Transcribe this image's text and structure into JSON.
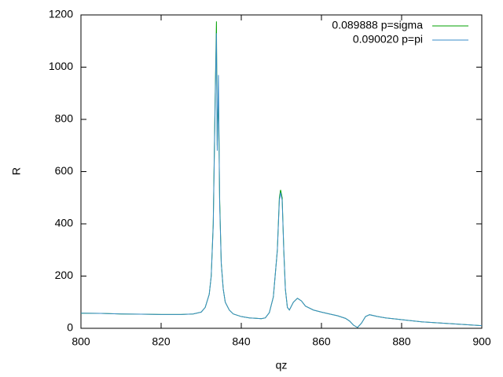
{
  "chart_data": {
    "type": "line",
    "xlabel": "qz",
    "ylabel": "R",
    "x": [
      800,
      805,
      810,
      815,
      820,
      825,
      828,
      830,
      831,
      832,
      832.5,
      833,
      833.5,
      833.8,
      834,
      834.3,
      834.6,
      835,
      835.5,
      836,
      837,
      838,
      840,
      842,
      844,
      845,
      846,
      847,
      848,
      849,
      849.5,
      849.8,
      850.2,
      850.6,
      851,
      851.5,
      852,
      853,
      854,
      855,
      856,
      858,
      860,
      862,
      864,
      866,
      867,
      868,
      869,
      870,
      871,
      872,
      874,
      876,
      880,
      885,
      890,
      895,
      900
    ],
    "series": [
      {
        "name": "0.089888 p=sigma",
        "color": "#00a000",
        "values": [
          58,
          57,
          55,
          54,
          53,
          53,
          55,
          62,
          80,
          130,
          200,
          400,
          900,
          1175,
          700,
          900,
          500,
          250,
          150,
          100,
          70,
          55,
          45,
          40,
          38,
          37,
          40,
          60,
          120,
          300,
          500,
          530,
          500,
          300,
          150,
          80,
          70,
          100,
          115,
          105,
          85,
          70,
          62,
          55,
          48,
          38,
          28,
          12,
          3,
          20,
          45,
          52,
          45,
          40,
          33,
          25,
          20,
          15,
          10
        ]
      },
      {
        "name": "0.090020 p=pi",
        "color": "#3a8cc8",
        "values": [
          58,
          57,
          55,
          54,
          53,
          53,
          55,
          62,
          80,
          130,
          200,
          390,
          880,
          1130,
          680,
          970,
          480,
          250,
          150,
          100,
          70,
          55,
          45,
          40,
          38,
          37,
          40,
          60,
          120,
          300,
          490,
          520,
          490,
          300,
          150,
          80,
          70,
          100,
          115,
          105,
          85,
          70,
          62,
          55,
          48,
          38,
          28,
          12,
          3,
          20,
          45,
          52,
          45,
          40,
          33,
          25,
          20,
          15,
          10
        ]
      }
    ],
    "xlim": [
      800,
      900
    ],
    "xticks": [
      800,
      820,
      840,
      860,
      880,
      900
    ],
    "ylim": [
      0,
      1200
    ],
    "yticks": [
      0,
      200,
      400,
      600,
      800,
      1000,
      1200
    ],
    "legend": "top-right"
  }
}
